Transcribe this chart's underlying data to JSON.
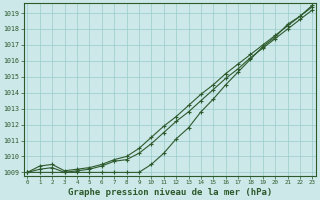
{
  "bg_color": "#cce8e8",
  "grid_color": "#99cccc",
  "line_color": "#2d5a2d",
  "title": "Graphe pression niveau de la mer (hPa)",
  "title_fontsize": 6.5,
  "ylim": [
    1008.8,
    1019.6
  ],
  "xlim": [
    -0.3,
    23.3
  ],
  "yticks": [
    1009,
    1010,
    1011,
    1012,
    1013,
    1014,
    1015,
    1016,
    1017,
    1018,
    1019
  ],
  "xticks": [
    0,
    1,
    2,
    3,
    4,
    5,
    6,
    7,
    8,
    9,
    10,
    11,
    12,
    13,
    14,
    15,
    16,
    17,
    18,
    19,
    20,
    21,
    22,
    23
  ],
  "series1": [
    1009.0,
    1009.4,
    1009.5,
    1009.1,
    1009.2,
    1009.3,
    1009.5,
    1009.8,
    1010.0,
    1010.5,
    1011.2,
    1011.9,
    1012.5,
    1013.2,
    1013.9,
    1014.5,
    1015.2,
    1015.8,
    1016.4,
    1017.0,
    1017.6,
    1018.2,
    1018.8,
    1019.4
  ],
  "series2": [
    1009.0,
    1009.2,
    1009.3,
    1009.0,
    1009.1,
    1009.2,
    1009.4,
    1009.7,
    1009.8,
    1010.2,
    1010.8,
    1011.5,
    1012.2,
    1012.8,
    1013.5,
    1014.2,
    1014.9,
    1015.5,
    1016.2,
    1016.8,
    1017.4,
    1018.0,
    1018.6,
    1019.2
  ],
  "series3": [
    1009.0,
    1009.0,
    1009.0,
    1009.0,
    1009.0,
    1009.0,
    1009.0,
    1009.0,
    1009.0,
    1009.0,
    1009.5,
    1010.2,
    1011.1,
    1011.8,
    1012.8,
    1013.6,
    1014.5,
    1015.3,
    1016.1,
    1016.9,
    1017.5,
    1018.3,
    1018.8,
    1019.5
  ]
}
